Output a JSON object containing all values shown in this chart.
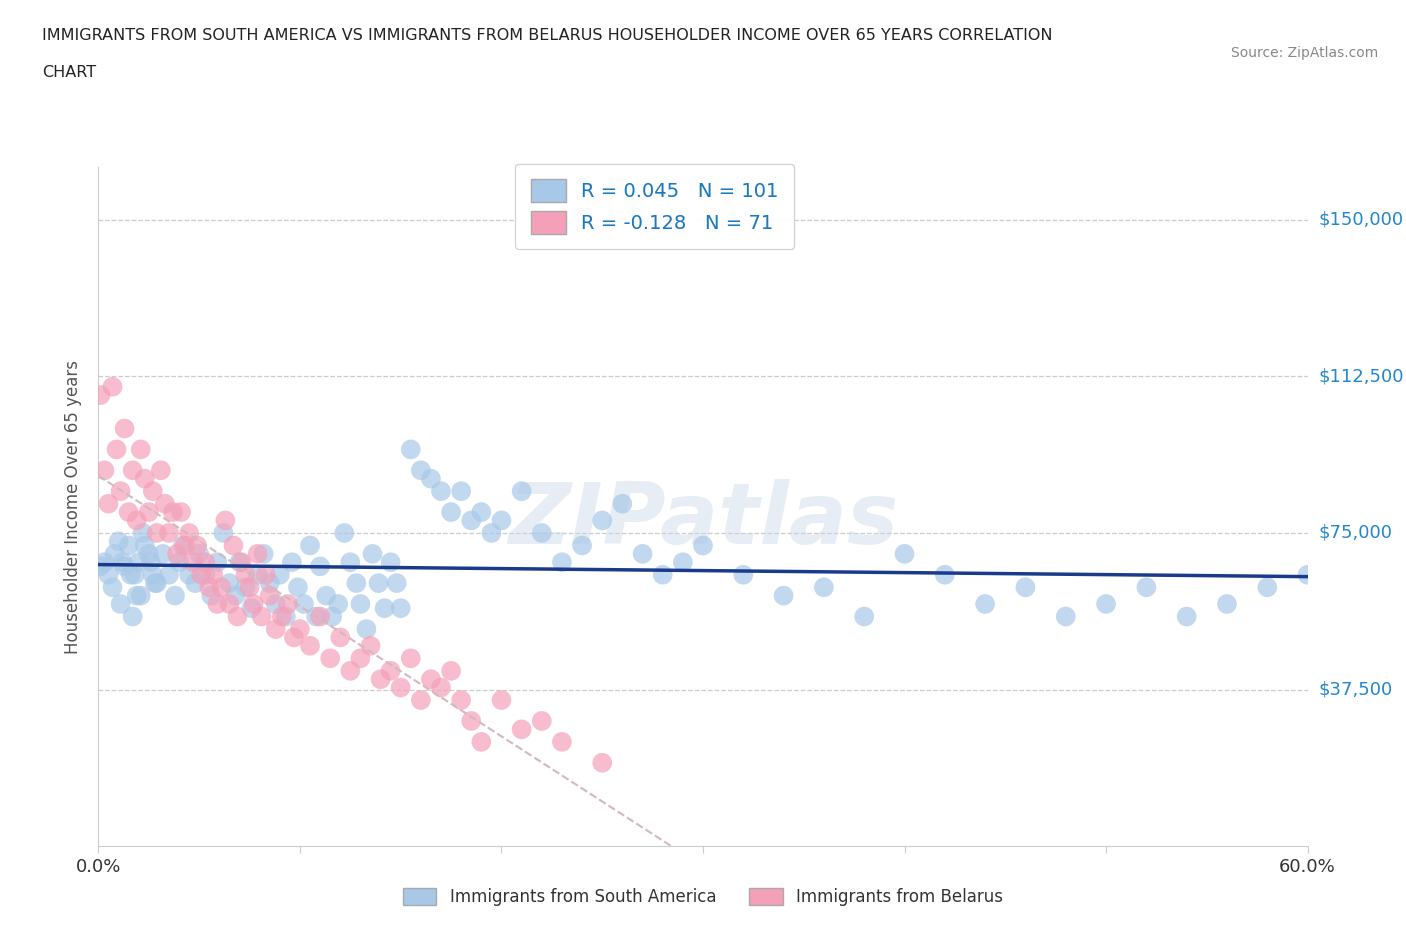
{
  "title_line1": "IMMIGRANTS FROM SOUTH AMERICA VS IMMIGRANTS FROM BELARUS HOUSEHOLDER INCOME OVER 65 YEARS CORRELATION",
  "title_line2": "CHART",
  "source": "Source: ZipAtlas.com",
  "ylabel": "Householder Income Over 65 years",
  "xlim": [
    0.0,
    0.6
  ],
  "ylim": [
    0,
    162500
  ],
  "yticks": [
    0,
    37500,
    75000,
    112500,
    150000
  ],
  "ytick_labels": [
    "",
    "$37,500",
    "$75,000",
    "$112,500",
    "$150,000"
  ],
  "color_sa": "#a8c8e8",
  "color_be": "#f4a0b8",
  "line_color_sa": "#1a3a8b",
  "line_color_be": "#d8c0c8",
  "R_sa": 0.045,
  "N_sa": 101,
  "R_be": -0.128,
  "N_be": 71,
  "sa_x": [
    0.001,
    0.005,
    0.008,
    0.012,
    0.015,
    0.018,
    0.02,
    0.022,
    0.025,
    0.028,
    0.01,
    0.013,
    0.016,
    0.019,
    0.023,
    0.026,
    0.029,
    0.032,
    0.035,
    0.038,
    0.04,
    0.042,
    0.045,
    0.048,
    0.05,
    0.053,
    0.056,
    0.059,
    0.062,
    0.065,
    0.068,
    0.07,
    0.073,
    0.076,
    0.079,
    0.082,
    0.085,
    0.088,
    0.09,
    0.093,
    0.096,
    0.099,
    0.102,
    0.105,
    0.108,
    0.11,
    0.113,
    0.116,
    0.119,
    0.122,
    0.125,
    0.128,
    0.13,
    0.133,
    0.136,
    0.139,
    0.142,
    0.145,
    0.148,
    0.15,
    0.155,
    0.16,
    0.165,
    0.17,
    0.175,
    0.18,
    0.185,
    0.19,
    0.195,
    0.2,
    0.21,
    0.22,
    0.23,
    0.24,
    0.25,
    0.26,
    0.27,
    0.28,
    0.29,
    0.3,
    0.32,
    0.34,
    0.36,
    0.38,
    0.4,
    0.42,
    0.44,
    0.46,
    0.48,
    0.5,
    0.52,
    0.54,
    0.56,
    0.58,
    0.6,
    0.003,
    0.007,
    0.011,
    0.017,
    0.021,
    0.027
  ],
  "sa_y": [
    67000,
    65000,
    70000,
    68000,
    72000,
    65000,
    68000,
    75000,
    70000,
    63000,
    73000,
    67000,
    65000,
    60000,
    72000,
    68000,
    63000,
    70000,
    65000,
    60000,
    68000,
    72000,
    65000,
    63000,
    70000,
    65000,
    60000,
    68000,
    75000,
    63000,
    60000,
    68000,
    62000,
    57000,
    65000,
    70000,
    63000,
    58000,
    65000,
    55000,
    68000,
    62000,
    58000,
    72000,
    55000,
    67000,
    60000,
    55000,
    58000,
    75000,
    68000,
    63000,
    58000,
    52000,
    70000,
    63000,
    57000,
    68000,
    63000,
    57000,
    95000,
    90000,
    88000,
    85000,
    80000,
    85000,
    78000,
    80000,
    75000,
    78000,
    85000,
    75000,
    68000,
    72000,
    78000,
    82000,
    70000,
    65000,
    68000,
    72000,
    65000,
    60000,
    62000,
    55000,
    70000,
    65000,
    58000,
    62000,
    55000,
    58000,
    62000,
    55000,
    58000,
    62000,
    65000,
    68000,
    62000,
    58000,
    55000,
    60000,
    65000
  ],
  "be_x": [
    0.001,
    0.003,
    0.005,
    0.007,
    0.009,
    0.011,
    0.013,
    0.015,
    0.017,
    0.019,
    0.021,
    0.023,
    0.025,
    0.027,
    0.029,
    0.031,
    0.033,
    0.035,
    0.037,
    0.039,
    0.041,
    0.043,
    0.045,
    0.047,
    0.049,
    0.051,
    0.053,
    0.055,
    0.057,
    0.059,
    0.061,
    0.063,
    0.065,
    0.067,
    0.069,
    0.071,
    0.073,
    0.075,
    0.077,
    0.079,
    0.081,
    0.083,
    0.085,
    0.088,
    0.091,
    0.094,
    0.097,
    0.1,
    0.105,
    0.11,
    0.115,
    0.12,
    0.125,
    0.13,
    0.135,
    0.14,
    0.145,
    0.15,
    0.155,
    0.16,
    0.165,
    0.17,
    0.175,
    0.18,
    0.185,
    0.19,
    0.2,
    0.21,
    0.22,
    0.23,
    0.25
  ],
  "be_y": [
    108000,
    90000,
    82000,
    110000,
    95000,
    85000,
    100000,
    80000,
    90000,
    78000,
    95000,
    88000,
    80000,
    85000,
    75000,
    90000,
    82000,
    75000,
    80000,
    70000,
    80000,
    72000,
    75000,
    68000,
    72000,
    65000,
    68000,
    62000,
    65000,
    58000,
    62000,
    78000,
    58000,
    72000,
    55000,
    68000,
    65000,
    62000,
    58000,
    70000,
    55000,
    65000,
    60000,
    52000,
    55000,
    58000,
    50000,
    52000,
    48000,
    55000,
    45000,
    50000,
    42000,
    45000,
    48000,
    40000,
    42000,
    38000,
    45000,
    35000,
    40000,
    38000,
    42000,
    35000,
    30000,
    25000,
    35000,
    28000,
    30000,
    25000,
    20000
  ]
}
